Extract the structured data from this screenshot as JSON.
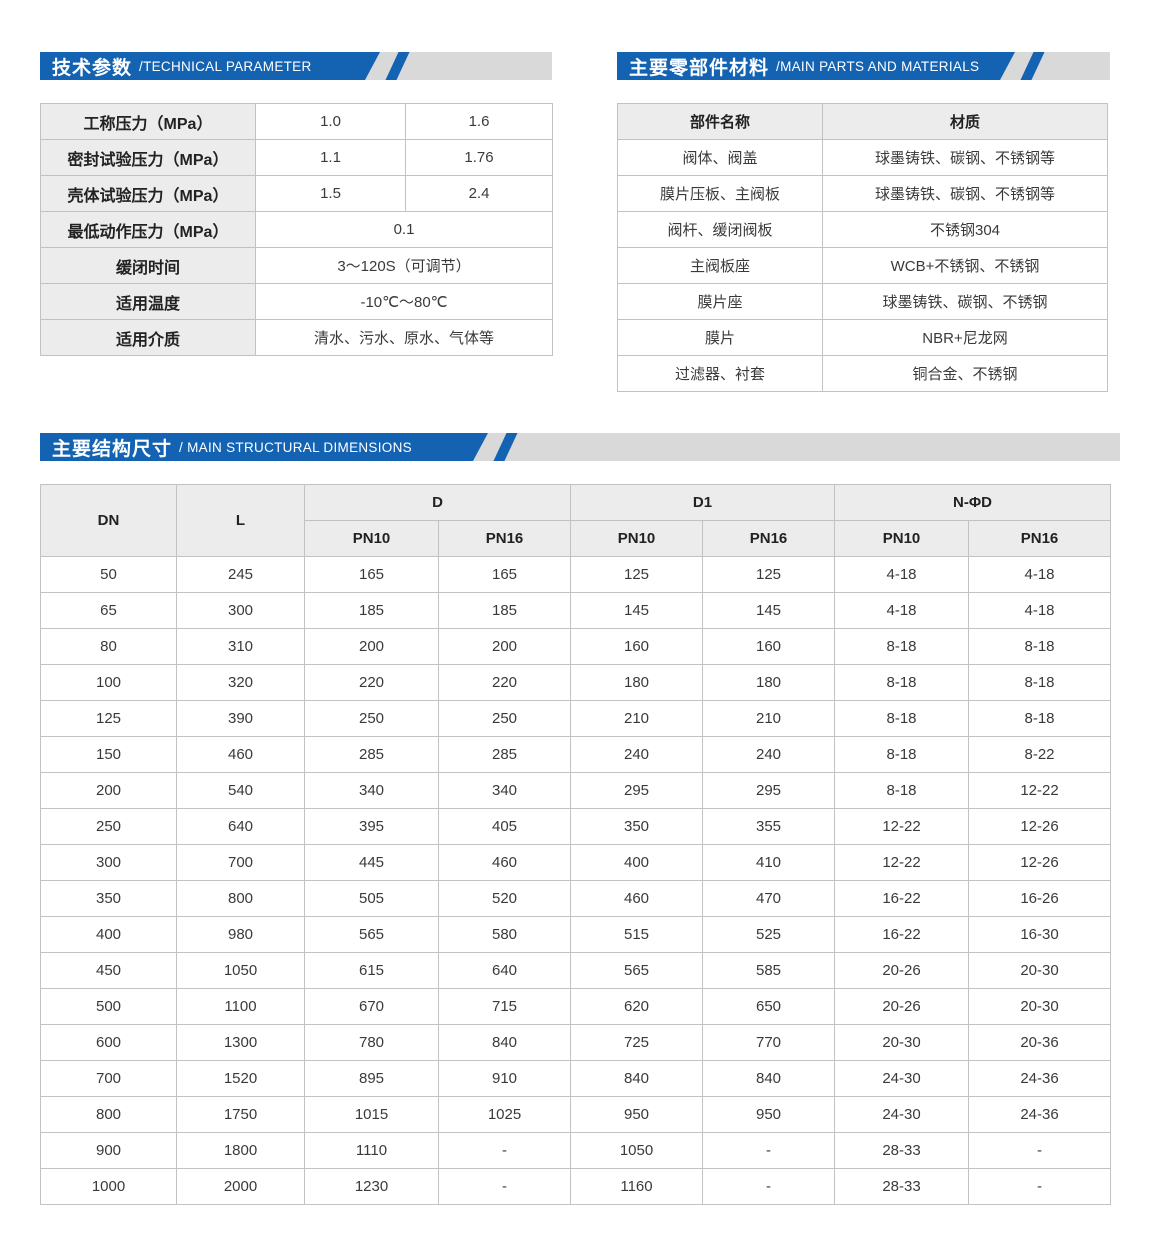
{
  "colors": {
    "accent_blue": "#1463b3",
    "banner_gray": "#d9d9d9",
    "table_header_gray": "#ececec"
  },
  "technical": {
    "title_cn": "技术参数",
    "title_en": "/TECHNICAL PARAMETER",
    "rows": [
      {
        "label": "工称压力（MPa）",
        "values": [
          "1.0",
          "1.6"
        ]
      },
      {
        "label": "密封试验压力（MPa）",
        "values": [
          "1.1",
          "1.76"
        ]
      },
      {
        "label": "壳体试验压力（MPa）",
        "values": [
          "1.5",
          "2.4"
        ]
      },
      {
        "label": "最低动作压力（MPa）",
        "values": [
          "0.1"
        ]
      },
      {
        "label": "缓闭时间",
        "values": [
          "3～120S（可调节）"
        ]
      },
      {
        "label": "适用温度",
        "values": [
          "-10℃～80℃"
        ]
      },
      {
        "label": "适用介质",
        "values": [
          "清水、污水、原水、气体等"
        ]
      }
    ]
  },
  "materials": {
    "title_cn": "主要零部件材料",
    "title_en": "/MAIN PARTS AND MATERIALS",
    "headers": [
      "部件名称",
      "材质"
    ],
    "rows": [
      [
        "阀体、阀盖",
        "球墨铸铁、碳钢、不锈钢等"
      ],
      [
        "膜片压板、主阀板",
        "球墨铸铁、碳钢、不锈钢等"
      ],
      [
        "阀杆、缓闭阀板",
        "不锈钢304"
      ],
      [
        "主阀板座",
        "WCB+不锈钢、不锈钢"
      ],
      [
        "膜片座",
        "球墨铸铁、碳钢、不锈钢"
      ],
      [
        "膜片",
        "NBR+尼龙网"
      ],
      [
        "过滤器、衬套",
        "铜合金、不锈钢"
      ]
    ]
  },
  "dimensions": {
    "title_cn": "主要结构尺寸",
    "title_en": "/ MAIN STRUCTURAL DIMENSIONS",
    "col_dn": "DN",
    "col_l": "L",
    "group_d": "D",
    "group_d1": "D1",
    "group_nphid": "N-ΦD",
    "sub_headers": [
      "PN10",
      "PN16",
      "PN10",
      "PN16",
      "PN10",
      "PN16"
    ],
    "rows": [
      [
        "50",
        "245",
        "165",
        "165",
        "125",
        "125",
        "4-18",
        "4-18"
      ],
      [
        "65",
        "300",
        "185",
        "185",
        "145",
        "145",
        "4-18",
        "4-18"
      ],
      [
        "80",
        "310",
        "200",
        "200",
        "160",
        "160",
        "8-18",
        "8-18"
      ],
      [
        "100",
        "320",
        "220",
        "220",
        "180",
        "180",
        "8-18",
        "8-18"
      ],
      [
        "125",
        "390",
        "250",
        "250",
        "210",
        "210",
        "8-18",
        "8-18"
      ],
      [
        "150",
        "460",
        "285",
        "285",
        "240",
        "240",
        "8-18",
        "8-22"
      ],
      [
        "200",
        "540",
        "340",
        "340",
        "295",
        "295",
        "8-18",
        "12-22"
      ],
      [
        "250",
        "640",
        "395",
        "405",
        "350",
        "355",
        "12-22",
        "12-26"
      ],
      [
        "300",
        "700",
        "445",
        "460",
        "400",
        "410",
        "12-22",
        "12-26"
      ],
      [
        "350",
        "800",
        "505",
        "520",
        "460",
        "470",
        "16-22",
        "16-26"
      ],
      [
        "400",
        "980",
        "565",
        "580",
        "515",
        "525",
        "16-22",
        "16-30"
      ],
      [
        "450",
        "1050",
        "615",
        "640",
        "565",
        "585",
        "20-26",
        "20-30"
      ],
      [
        "500",
        "1100",
        "670",
        "715",
        "620",
        "650",
        "20-26",
        "20-30"
      ],
      [
        "600",
        "1300",
        "780",
        "840",
        "725",
        "770",
        "20-30",
        "20-36"
      ],
      [
        "700",
        "1520",
        "895",
        "910",
        "840",
        "840",
        "24-30",
        "24-36"
      ],
      [
        "800",
        "1750",
        "1015",
        "1025",
        "950",
        "950",
        "24-30",
        "24-36"
      ],
      [
        "900",
        "1800",
        "1110",
        "-",
        "1050",
        "-",
        "28-33",
        "-"
      ],
      [
        "1000",
        "2000",
        "1230",
        "-",
        "1160",
        "-",
        "28-33",
        "-"
      ]
    ]
  }
}
